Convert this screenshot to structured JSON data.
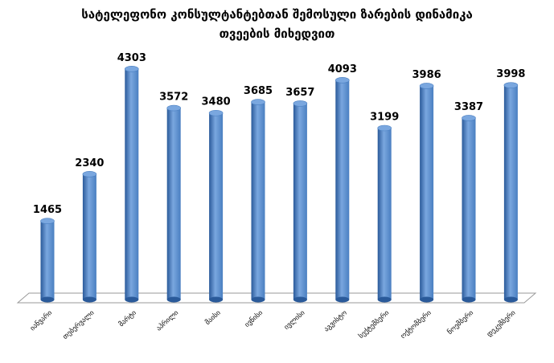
{
  "chart_data": {
    "type": "bar",
    "title_line1": "სატელეფონო კონსულტანტებთან შემოსული ზარების დინამიკა",
    "title_line2": "თვეების მიხედვით",
    "categories": [
      "იანვარი",
      "თებერვალი",
      "მარტი",
      "აპრილი",
      "მაისი",
      "ივნისი",
      "ივლისი",
      "აგვისტო",
      "სექტემბერი",
      "ოქტომბერი",
      "ნოემბერი",
      "დეკემბერი"
    ],
    "values": [
      1465,
      2340,
      4303,
      3572,
      3480,
      3685,
      3657,
      4093,
      3199,
      3986,
      3387,
      3998
    ],
    "ylim": [
      0,
      4600
    ],
    "grid": false,
    "legend": "none",
    "colors": {
      "bar_light": "#7aa7df",
      "bar_mid": "#4a7fc1",
      "bar_dark": "#2a5a9a",
      "floor": "#ffffff",
      "floor_edge": "#9a9a9a"
    }
  }
}
